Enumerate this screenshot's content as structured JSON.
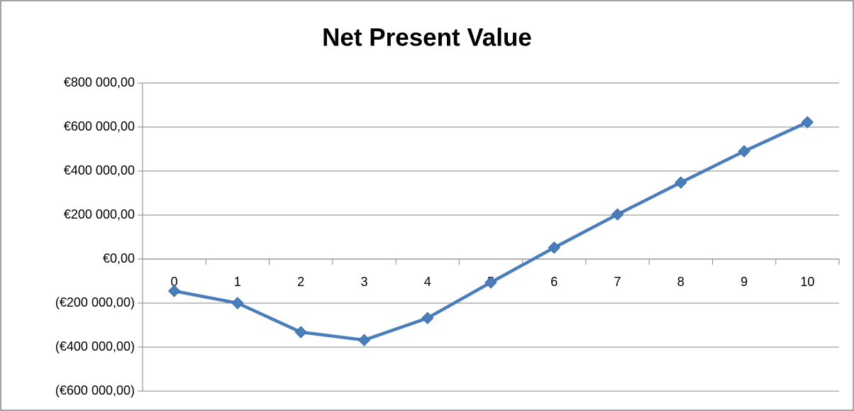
{
  "chart_data": {
    "type": "line",
    "title": "Net Present Value",
    "categories": [
      "0",
      "1",
      "2",
      "3",
      "4",
      "5",
      "6",
      "7",
      "8",
      "9",
      "10"
    ],
    "values": [
      -145000,
      -200000,
      -332000,
      -368000,
      -268000,
      -106000,
      52000,
      203000,
      348000,
      490000,
      622000
    ],
    "color": "#4a7ebb",
    "ylim": [
      -600000,
      800000
    ],
    "yticks": [
      {
        "value": -600000,
        "label": "(€600 000,00)"
      },
      {
        "value": -400000,
        "label": "(€400 000,00)"
      },
      {
        "value": -200000,
        "label": "(€200 000,00)"
      },
      {
        "value": 0,
        "label": "€0,00"
      },
      {
        "value": 200000,
        "label": "€200 000,00"
      },
      {
        "value": 400000,
        "label": "€400 000,00"
      },
      {
        "value": 600000,
        "label": "€600 000,00"
      },
      {
        "value": 800000,
        "label": "€800 000,00"
      }
    ],
    "negative_label_color": "#ff0000",
    "grid": true,
    "marker": "diamond"
  }
}
